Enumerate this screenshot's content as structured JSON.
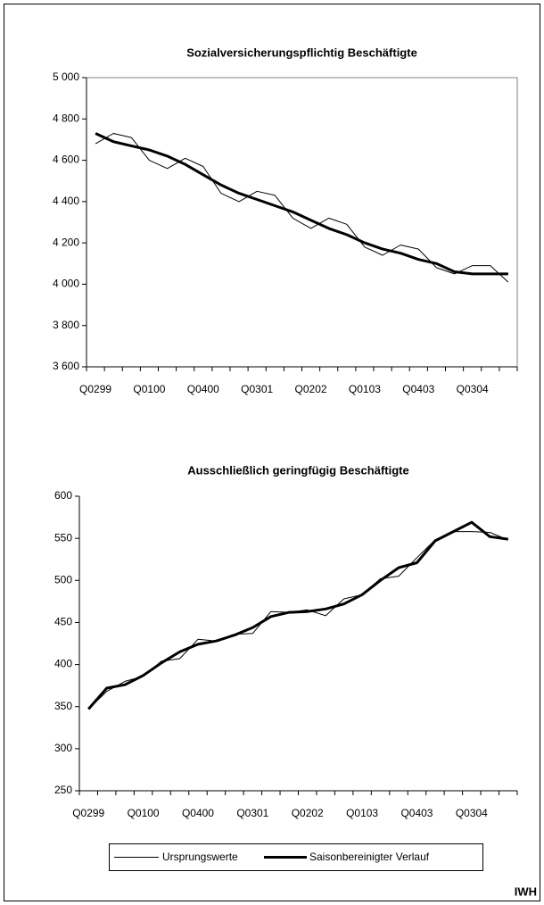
{
  "chart_data": [
    {
      "type": "line",
      "title": "Sozialversicherungspflichtig Beschäftigte",
      "categories": [
        "Q0299",
        null,
        null,
        "Q0100",
        null,
        null,
        "Q0400",
        null,
        null,
        "Q0301",
        null,
        null,
        "Q0202",
        null,
        null,
        "Q0103",
        null,
        null,
        "Q0403",
        null,
        null,
        "Q0304",
        null,
        null
      ],
      "series": [
        {
          "name": "Ursprungswerte",
          "color": "#000000",
          "line_width": 1,
          "values": [
            4680,
            4730,
            4710,
            4600,
            4560,
            4610,
            4570,
            4440,
            4400,
            4450,
            4430,
            4320,
            4270,
            4320,
            4290,
            4180,
            4140,
            4190,
            4170,
            4080,
            4050,
            4090,
            4090,
            4010
          ]
        },
        {
          "name": "Saisonbereinigter Verlauf",
          "color": "#000000",
          "line_width": 3,
          "values": [
            4730,
            4690,
            4670,
            4650,
            4620,
            4580,
            4530,
            4480,
            4440,
            4410,
            4380,
            4350,
            4310,
            4270,
            4240,
            4200,
            4170,
            4150,
            4120,
            4100,
            4060,
            4050,
            4050,
            4050
          ]
        }
      ],
      "ylim": [
        3600,
        5000
      ],
      "yticks": [
        {
          "value": 3600,
          "label": "3 600"
        },
        {
          "value": 3800,
          "label": "3 800"
        },
        {
          "value": 4000,
          "label": "4 000"
        },
        {
          "value": 4200,
          "label": "4 200"
        },
        {
          "value": 4400,
          "label": "4 400"
        },
        {
          "value": 4600,
          "label": "4 600"
        },
        {
          "value": 4800,
          "label": "4 800"
        },
        {
          "value": 5000,
          "label": "5 000"
        }
      ],
      "grid": false,
      "plot_border": true
    },
    {
      "type": "line",
      "title": "Ausschließlich geringfügig Beschäftigte",
      "categories": [
        "Q0299",
        null,
        null,
        "Q0100",
        null,
        null,
        "Q0400",
        null,
        null,
        "Q0301",
        null,
        null,
        "Q0202",
        null,
        null,
        "Q0103",
        null,
        null,
        "Q0403",
        null,
        null,
        "Q0304",
        null,
        null
      ],
      "series": [
        {
          "name": "Ursprungswerte",
          "color": "#000000",
          "line_width": 1,
          "values": [
            347,
            368,
            380,
            386,
            404,
            407,
            430,
            428,
            436,
            437,
            463,
            462,
            465,
            458,
            478,
            483,
            502,
            505,
            527,
            548,
            558,
            558,
            557,
            548
          ]
        },
        {
          "name": "Saisonbereinigter Verlauf",
          "color": "#000000",
          "line_width": 3,
          "values": [
            347,
            372,
            376,
            387,
            402,
            415,
            424,
            428,
            435,
            444,
            457,
            462,
            463,
            466,
            472,
            483,
            500,
            515,
            521,
            547,
            558,
            569,
            552,
            549
          ]
        }
      ],
      "ylim": [
        250,
        600
      ],
      "yticks": [
        250,
        300,
        350,
        400,
        450,
        500,
        550,
        600
      ],
      "grid": false,
      "plot_border": false
    }
  ],
  "source": "IWH"
}
